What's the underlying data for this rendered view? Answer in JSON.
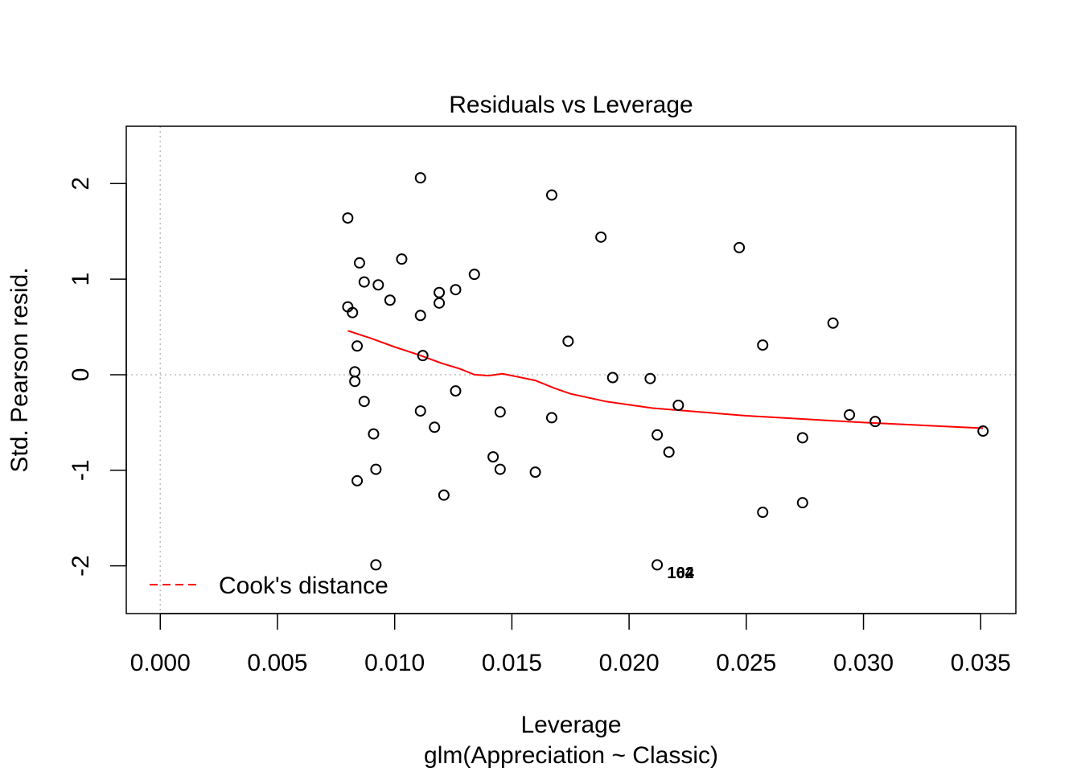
{
  "chart_data": {
    "type": "scatter",
    "title": "Residuals vs Leverage",
    "xlabel": "Leverage",
    "ylabel": "Std. Pearson resid.",
    "subtitle": "glm(Appreciation ~ Classic)",
    "xlim": [
      -0.00145,
      0.0365
    ],
    "ylim": [
      -2.5,
      2.6
    ],
    "x_ticks": [
      0.0,
      0.005,
      0.01,
      0.015,
      0.02,
      0.025,
      0.03,
      0.035
    ],
    "x_tick_labels": [
      "0.000",
      "0.005",
      "0.010",
      "0.015",
      "0.020",
      "0.025",
      "0.030",
      "0.035"
    ],
    "y_ticks": [
      -2,
      -1,
      0,
      1,
      2
    ],
    "y_tick_labels": [
      "-2",
      "-1",
      "0",
      "1",
      "2"
    ],
    "reference_lines": {
      "x": 0,
      "y": 0
    },
    "legend": {
      "position": "bottom-left",
      "label": "Cook's distance",
      "line_style": "dashed",
      "color": "#FF0000"
    },
    "points": [
      {
        "x": 0.008,
        "y": 1.64
      },
      {
        "x": 0.008,
        "y": 0.71
      },
      {
        "x": 0.0082,
        "y": 0.65
      },
      {
        "x": 0.0083,
        "y": 0.03
      },
      {
        "x": 0.0083,
        "y": -0.07
      },
      {
        "x": 0.0084,
        "y": 0.3
      },
      {
        "x": 0.0084,
        "y": -1.11
      },
      {
        "x": 0.0085,
        "y": 1.17
      },
      {
        "x": 0.0087,
        "y": 0.97
      },
      {
        "x": 0.0087,
        "y": -0.28
      },
      {
        "x": 0.0091,
        "y": -0.62
      },
      {
        "x": 0.0092,
        "y": -0.99
      },
      {
        "x": 0.0092,
        "y": -1.99
      },
      {
        "x": 0.0093,
        "y": 0.94
      },
      {
        "x": 0.0098,
        "y": 0.78
      },
      {
        "x": 0.0103,
        "y": 1.21
      },
      {
        "x": 0.0111,
        "y": 2.06
      },
      {
        "x": 0.0111,
        "y": 0.62
      },
      {
        "x": 0.0111,
        "y": -0.38
      },
      {
        "x": 0.0112,
        "y": 0.2
      },
      {
        "x": 0.0117,
        "y": -0.55
      },
      {
        "x": 0.0119,
        "y": 0.86
      },
      {
        "x": 0.0119,
        "y": 0.75
      },
      {
        "x": 0.0121,
        "y": -1.26
      },
      {
        "x": 0.0126,
        "y": 0.89
      },
      {
        "x": 0.0126,
        "y": -0.17
      },
      {
        "x": 0.0134,
        "y": 1.05
      },
      {
        "x": 0.0142,
        "y": -0.86
      },
      {
        "x": 0.0145,
        "y": -0.39
      },
      {
        "x": 0.0145,
        "y": -0.99
      },
      {
        "x": 0.016,
        "y": -1.02
      },
      {
        "x": 0.0167,
        "y": 1.88
      },
      {
        "x": 0.0167,
        "y": -0.45
      },
      {
        "x": 0.0174,
        "y": 0.35
      },
      {
        "x": 0.0188,
        "y": 1.44
      },
      {
        "x": 0.0193,
        "y": -0.03
      },
      {
        "x": 0.0209,
        "y": -0.04
      },
      {
        "x": 0.0212,
        "y": -0.63
      },
      {
        "x": 0.0212,
        "y": -1.99
      },
      {
        "x": 0.0217,
        "y": -0.81
      },
      {
        "x": 0.0221,
        "y": -0.32
      },
      {
        "x": 0.0247,
        "y": 1.33
      },
      {
        "x": 0.0257,
        "y": 0.31
      },
      {
        "x": 0.0257,
        "y": -1.44
      },
      {
        "x": 0.0274,
        "y": -0.66
      },
      {
        "x": 0.0274,
        "y": -1.34
      },
      {
        "x": 0.0287,
        "y": 0.54
      },
      {
        "x": 0.0294,
        "y": -0.42
      },
      {
        "x": 0.0305,
        "y": -0.49
      },
      {
        "x": 0.0351,
        "y": -0.59
      }
    ],
    "point_labels": [
      {
        "text": "104",
        "x": 0.0222,
        "y": -2.07
      },
      {
        "text": "162",
        "x": 0.0222,
        "y": -2.07
      }
    ],
    "smooth_line": {
      "color": "#FF0000",
      "points": [
        {
          "x": 0.008,
          "y": 0.46
        },
        {
          "x": 0.009,
          "y": 0.38
        },
        {
          "x": 0.01,
          "y": 0.29
        },
        {
          "x": 0.011,
          "y": 0.21
        },
        {
          "x": 0.012,
          "y": 0.12
        },
        {
          "x": 0.0128,
          "y": 0.06
        },
        {
          "x": 0.0134,
          "y": 0.0
        },
        {
          "x": 0.014,
          "y": -0.01
        },
        {
          "x": 0.0146,
          "y": 0.01
        },
        {
          "x": 0.0152,
          "y": -0.02
        },
        {
          "x": 0.016,
          "y": -0.06
        },
        {
          "x": 0.0168,
          "y": -0.14
        },
        {
          "x": 0.0175,
          "y": -0.2
        },
        {
          "x": 0.019,
          "y": -0.28
        },
        {
          "x": 0.021,
          "y": -0.35
        },
        {
          "x": 0.025,
          "y": -0.43
        },
        {
          "x": 0.03,
          "y": -0.5
        },
        {
          "x": 0.0351,
          "y": -0.56
        }
      ]
    }
  }
}
